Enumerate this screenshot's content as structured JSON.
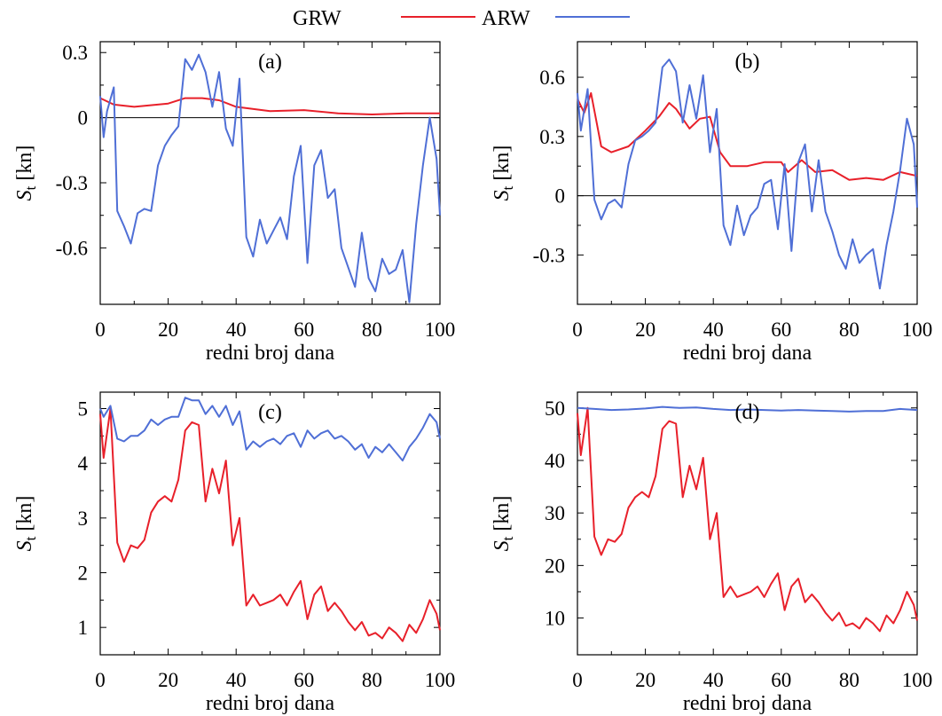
{
  "legend": {
    "position": "top-center",
    "entries": [
      {
        "label": "GRW",
        "color": "#e8202a"
      },
      {
        "label": "ARW",
        "color": "#4f6fd6"
      }
    ]
  },
  "chart_data": [
    {
      "type": "line",
      "panel": "(a)",
      "xlabel": "redni broj dana",
      "ylabel_main": "S",
      "ylabel_sub": "t",
      "ylabel_unit": "[kn]",
      "xlim": [
        0,
        100
      ],
      "ylim": [
        -0.86,
        0.35
      ],
      "xticks": [
        "0",
        "20",
        "40",
        "60",
        "80",
        "100"
      ],
      "yticks": [
        {
          "value": 0.3,
          "label": "0.3"
        },
        {
          "value": 0,
          "label": "0"
        },
        {
          "value": -0.3,
          "label": "-0.3"
        },
        {
          "value": -0.6,
          "label": "-0.6"
        }
      ],
      "zero_line": true,
      "series": [
        {
          "name": "GRW",
          "color": "#e8202a",
          "x": [
            0,
            4,
            10,
            20,
            25,
            30,
            35,
            40,
            50,
            60,
            70,
            80,
            90,
            100
          ],
          "values": [
            0.09,
            0.06,
            0.05,
            0.065,
            0.09,
            0.09,
            0.08,
            0.05,
            0.03,
            0.035,
            0.02,
            0.015,
            0.02,
            0.02
          ]
        },
        {
          "name": "ARW",
          "color": "#4f6fd6",
          "x": [
            0,
            1,
            2,
            4,
            5,
            7,
            9,
            11,
            13,
            15,
            17,
            19,
            21,
            23,
            25,
            27,
            29,
            31,
            33,
            35,
            37,
            39,
            41,
            43,
            45,
            47,
            49,
            51,
            53,
            55,
            57,
            59,
            61,
            63,
            65,
            67,
            69,
            71,
            73,
            75,
            77,
            79,
            81,
            83,
            85,
            87,
            89,
            91,
            93,
            95,
            97,
            99,
            100
          ],
          "values": [
            0.1,
            -0.09,
            0.03,
            0.14,
            -0.43,
            -0.5,
            -0.58,
            -0.44,
            -0.42,
            -0.43,
            -0.22,
            -0.13,
            -0.08,
            -0.04,
            0.27,
            0.22,
            0.29,
            0.21,
            0.05,
            0.21,
            -0.05,
            -0.13,
            0.18,
            -0.55,
            -0.64,
            -0.47,
            -0.58,
            -0.52,
            -0.46,
            -0.56,
            -0.27,
            -0.13,
            -0.67,
            -0.22,
            -0.15,
            -0.37,
            -0.33,
            -0.6,
            -0.69,
            -0.78,
            -0.53,
            -0.74,
            -0.8,
            -0.65,
            -0.72,
            -0.7,
            -0.61,
            -0.85,
            -0.49,
            -0.22,
            0.0,
            -0.19,
            -0.45
          ]
        }
      ]
    },
    {
      "type": "line",
      "panel": "(b)",
      "xlabel": "redni broj dana",
      "ylabel_main": "S",
      "ylabel_sub": "t",
      "ylabel_unit": "[kn]",
      "xlim": [
        0,
        100
      ],
      "ylim": [
        -0.55,
        0.78
      ],
      "xticks": [
        "0",
        "20",
        "40",
        "60",
        "80",
        "100"
      ],
      "yticks": [
        {
          "value": 0.6,
          "label": "0.6"
        },
        {
          "value": 0.3,
          "label": "0.3"
        },
        {
          "value": 0,
          "label": "0"
        },
        {
          "value": -0.3,
          "label": "-0.3"
        }
      ],
      "zero_line": true,
      "series": [
        {
          "name": "GRW",
          "color": "#e8202a",
          "x": [
            0,
            2,
            4,
            7,
            10,
            15,
            20,
            24,
            27,
            29,
            33,
            36,
            39,
            42,
            45,
            50,
            55,
            60,
            62,
            66,
            70,
            75,
            80,
            85,
            90,
            95,
            100
          ],
          "values": [
            0.49,
            0.42,
            0.52,
            0.25,
            0.22,
            0.25,
            0.33,
            0.4,
            0.47,
            0.44,
            0.34,
            0.39,
            0.4,
            0.22,
            0.15,
            0.15,
            0.17,
            0.17,
            0.12,
            0.18,
            0.12,
            0.13,
            0.08,
            0.09,
            0.08,
            0.12,
            0.1
          ]
        },
        {
          "name": "ARW",
          "color": "#4f6fd6",
          "x": [
            0,
            1,
            3,
            5,
            7,
            9,
            11,
            13,
            15,
            17,
            19,
            21,
            23,
            25,
            27,
            29,
            31,
            33,
            35,
            37,
            39,
            41,
            43,
            45,
            47,
            49,
            51,
            53,
            55,
            57,
            59,
            61,
            63,
            65,
            67,
            69,
            71,
            73,
            75,
            77,
            79,
            81,
            83,
            85,
            87,
            89,
            91,
            93,
            95,
            97,
            99,
            100
          ],
          "values": [
            0.52,
            0.33,
            0.54,
            -0.02,
            -0.12,
            -0.04,
            -0.02,
            -0.06,
            0.16,
            0.28,
            0.3,
            0.33,
            0.37,
            0.65,
            0.69,
            0.63,
            0.37,
            0.56,
            0.39,
            0.61,
            0.22,
            0.44,
            -0.15,
            -0.25,
            -0.05,
            -0.2,
            -0.1,
            -0.06,
            0.06,
            0.08,
            -0.17,
            0.16,
            -0.28,
            0.17,
            0.26,
            -0.08,
            0.18,
            -0.08,
            -0.18,
            -0.3,
            -0.37,
            -0.22,
            -0.34,
            -0.3,
            -0.27,
            -0.47,
            -0.25,
            -0.08,
            0.13,
            0.39,
            0.26,
            -0.06
          ]
        }
      ]
    },
    {
      "type": "line",
      "panel": "(c)",
      "xlabel": "redni broj dana",
      "ylabel_main": "S",
      "ylabel_sub": "t",
      "ylabel_unit": "[kn]",
      "xlim": [
        0,
        100
      ],
      "ylim": [
        0.5,
        5.3
      ],
      "xticks": [
        "0",
        "20",
        "40",
        "60",
        "80",
        "100"
      ],
      "yticks": [
        {
          "value": 5,
          "label": "5"
        },
        {
          "value": 4,
          "label": "4"
        },
        {
          "value": 3,
          "label": "3"
        },
        {
          "value": 2,
          "label": "2"
        },
        {
          "value": 1,
          "label": "1"
        }
      ],
      "zero_line": false,
      "series": [
        {
          "name": "GRW",
          "color": "#e8202a",
          "x": [
            0,
            1,
            3,
            5,
            7,
            9,
            11,
            13,
            15,
            17,
            19,
            21,
            23,
            25,
            27,
            29,
            31,
            33,
            35,
            37,
            39,
            41,
            43,
            45,
            47,
            49,
            51,
            53,
            55,
            57,
            59,
            61,
            63,
            65,
            67,
            69,
            71,
            73,
            75,
            77,
            79,
            81,
            83,
            85,
            87,
            89,
            91,
            93,
            95,
            97,
            99,
            100
          ],
          "values": [
            4.9,
            4.1,
            5.0,
            2.55,
            2.2,
            2.5,
            2.45,
            2.6,
            3.1,
            3.3,
            3.4,
            3.3,
            3.7,
            4.6,
            4.75,
            4.7,
            3.3,
            3.9,
            3.45,
            4.05,
            2.5,
            3.0,
            1.4,
            1.6,
            1.4,
            1.45,
            1.5,
            1.6,
            1.4,
            1.65,
            1.85,
            1.15,
            1.6,
            1.75,
            1.3,
            1.45,
            1.3,
            1.1,
            0.95,
            1.1,
            0.85,
            0.9,
            0.8,
            1.0,
            0.9,
            0.75,
            1.05,
            0.9,
            1.15,
            1.5,
            1.25,
            0.95
          ]
        },
        {
          "name": "ARW",
          "color": "#4f6fd6",
          "x": [
            0,
            1,
            3,
            5,
            7,
            9,
            11,
            13,
            15,
            17,
            19,
            21,
            23,
            25,
            27,
            29,
            31,
            33,
            35,
            37,
            39,
            41,
            43,
            45,
            47,
            49,
            51,
            53,
            55,
            57,
            59,
            61,
            63,
            65,
            67,
            69,
            71,
            73,
            75,
            77,
            79,
            81,
            83,
            85,
            87,
            89,
            91,
            93,
            95,
            97,
            99,
            100
          ],
          "values": [
            5.0,
            4.85,
            5.05,
            4.45,
            4.4,
            4.5,
            4.5,
            4.6,
            4.8,
            4.7,
            4.8,
            4.85,
            4.85,
            5.2,
            5.15,
            5.15,
            4.9,
            5.05,
            4.85,
            5.05,
            4.7,
            4.95,
            4.25,
            4.4,
            4.3,
            4.4,
            4.45,
            4.35,
            4.5,
            4.55,
            4.3,
            4.6,
            4.45,
            4.55,
            4.6,
            4.45,
            4.5,
            4.4,
            4.25,
            4.35,
            4.1,
            4.3,
            4.2,
            4.35,
            4.2,
            4.05,
            4.3,
            4.45,
            4.65,
            4.9,
            4.75,
            4.45
          ]
        }
      ]
    },
    {
      "type": "line",
      "panel": "(d)",
      "xlabel": "redni broj dana",
      "ylabel_main": "S",
      "ylabel_sub": "t",
      "ylabel_unit": "[kn]",
      "xlim": [
        0,
        100
      ],
      "ylim": [
        3,
        53
      ],
      "xticks": [
        "0",
        "20",
        "40",
        "60",
        "80",
        "100"
      ],
      "yticks": [
        {
          "value": 50,
          "label": "50"
        },
        {
          "value": 40,
          "label": "40"
        },
        {
          "value": 30,
          "label": "30"
        },
        {
          "value": 20,
          "label": "20"
        },
        {
          "value": 10,
          "label": "10"
        }
      ],
      "zero_line": false,
      "series": [
        {
          "name": "GRW",
          "color": "#e8202a",
          "x": [
            0,
            1,
            3,
            5,
            7,
            9,
            11,
            13,
            15,
            17,
            19,
            21,
            23,
            25,
            27,
            29,
            31,
            33,
            35,
            37,
            39,
            41,
            43,
            45,
            47,
            49,
            51,
            53,
            55,
            57,
            59,
            61,
            63,
            65,
            67,
            69,
            71,
            73,
            75,
            77,
            79,
            81,
            83,
            85,
            87,
            89,
            91,
            93,
            95,
            97,
            99,
            100
          ],
          "values": [
            49,
            41,
            50,
            25.5,
            22,
            25,
            24.5,
            26,
            31,
            33,
            34,
            33,
            37,
            46,
            47.5,
            47,
            33,
            39,
            34.5,
            40.5,
            25,
            30,
            14,
            16,
            14,
            14.5,
            15,
            16,
            14,
            16.5,
            18.5,
            11.5,
            16,
            17.5,
            13,
            14.5,
            13,
            11,
            9.5,
            11,
            8.5,
            9,
            8,
            10,
            9,
            7.5,
            10.5,
            9,
            11.5,
            15,
            12.5,
            9.5
          ]
        },
        {
          "name": "ARW",
          "color": "#4f6fd6",
          "x": [
            0,
            5,
            10,
            15,
            20,
            25,
            30,
            35,
            40,
            45,
            50,
            55,
            60,
            65,
            70,
            75,
            80,
            85,
            90,
            95,
            100
          ],
          "values": [
            50,
            49.8,
            49.6,
            49.7,
            49.9,
            50.2,
            50.0,
            50.1,
            49.8,
            49.6,
            49.7,
            49.6,
            49.5,
            49.6,
            49.5,
            49.4,
            49.3,
            49.4,
            49.4,
            49.8,
            49.6
          ]
        }
      ]
    }
  ]
}
